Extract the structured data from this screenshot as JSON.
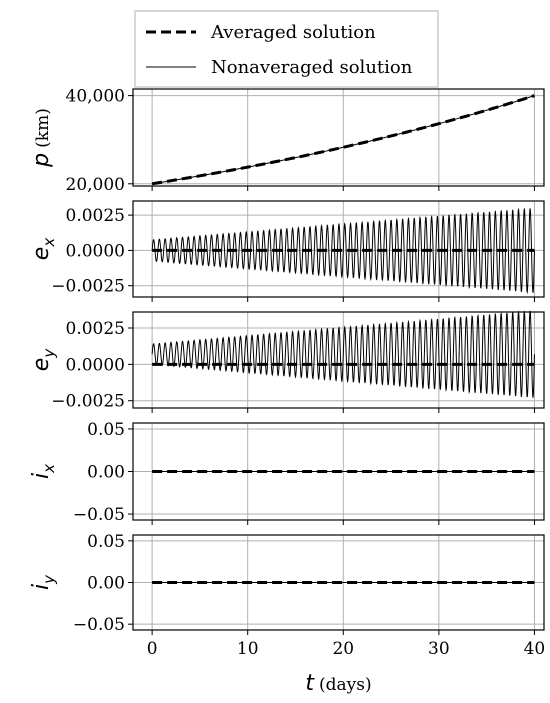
{
  "legend": {
    "items": [
      {
        "label": "Averaged solution",
        "style": "dashed"
      },
      {
        "label": "Nonaveraged solution",
        "style": "solid"
      }
    ]
  },
  "xaxis": {
    "symbol": "t",
    "unit": "(days)",
    "ticks": [
      0,
      10,
      20,
      30,
      40
    ],
    "tick_labels": [
      "0",
      "10",
      "20",
      "30",
      "40"
    ],
    "xlim": [
      -2,
      41
    ]
  },
  "chart_data": [
    {
      "type": "line",
      "ylabel_symbol": "p",
      "ylabel_sub": "",
      "ylabel_unit": "(km)",
      "ylim": [
        19500,
        41500
      ],
      "yticks": [
        20000,
        40000
      ],
      "ytick_labels": [
        "20,000",
        "40,000"
      ],
      "grid": true,
      "averaged": {
        "type": "exp",
        "start": 20000,
        "end": 40000
      },
      "nonaveraged": {
        "type": "exp",
        "start": 20000,
        "end": 40000
      }
    },
    {
      "type": "line",
      "ylabel_symbol": "e",
      "ylabel_sub": "x",
      "ylabel_unit": "",
      "ylim": [
        -0.0033,
        0.0035
      ],
      "yticks": [
        -0.0025,
        0.0,
        0.0025
      ],
      "ytick_labels": [
        "−0.0025",
        "0.0000",
        "0.0025"
      ],
      "grid": true,
      "averaged": {
        "type": "const",
        "value": 0.0
      },
      "nonaveraged": {
        "type": "oscillation",
        "center": 0.0,
        "amp_start": 0.00075,
        "amp_end": 0.003,
        "cycles": 66
      }
    },
    {
      "type": "line",
      "ylabel_symbol": "e",
      "ylabel_sub": "y",
      "ylabel_unit": "",
      "ylim": [
        -0.003,
        0.0036
      ],
      "yticks": [
        -0.0025,
        0.0,
        0.0025
      ],
      "ytick_labels": [
        "−0.0025",
        "0.0000",
        "0.0025"
      ],
      "grid": true,
      "averaged": {
        "type": "const",
        "value": 0.0
      },
      "nonaveraged": {
        "type": "oscillation",
        "center": 0.0007,
        "amp_start": 0.0007,
        "amp_end": 0.003,
        "cycles": 66
      }
    },
    {
      "type": "line",
      "ylabel_symbol": "i",
      "ylabel_sub": "x",
      "ylabel_unit": "",
      "ylim": [
        -0.057,
        0.057
      ],
      "yticks": [
        -0.05,
        0.0,
        0.05
      ],
      "ytick_labels": [
        "−0.05",
        "0.00",
        "0.05"
      ],
      "grid": true,
      "averaged": {
        "type": "const",
        "value": 0.0
      },
      "nonaveraged": {
        "type": "const",
        "value": 0.0
      }
    },
    {
      "type": "line",
      "ylabel_symbol": "i",
      "ylabel_sub": "y",
      "ylabel_unit": "",
      "ylim": [
        -0.057,
        0.057
      ],
      "yticks": [
        -0.05,
        0.0,
        0.05
      ],
      "ytick_labels": [
        "−0.05",
        "0.00",
        "0.05"
      ],
      "grid": true,
      "averaged": {
        "type": "const",
        "value": 0.0
      },
      "nonaveraged": {
        "type": "const",
        "value": 0.0
      }
    }
  ]
}
